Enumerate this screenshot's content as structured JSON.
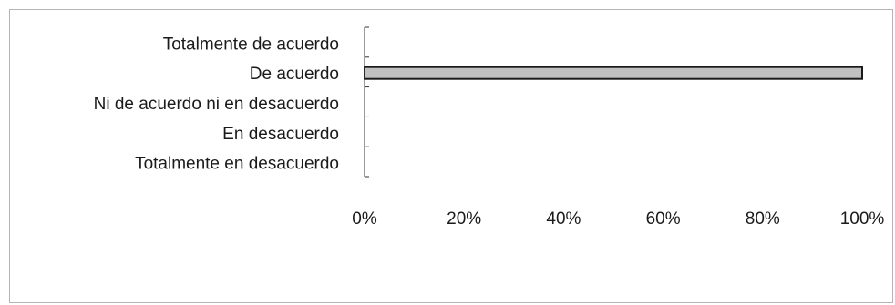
{
  "chart_data": {
    "type": "bar",
    "orientation": "horizontal",
    "categories": [
      "Totalmente de acuerdo",
      "De acuerdo",
      "Ni de acuerdo ni en desacuerdo",
      "En desacuerdo",
      "Totalmente en desacuerdo"
    ],
    "values": [
      0,
      100,
      0,
      0,
      0
    ],
    "value_unit": "percent",
    "xlim": [
      0,
      100
    ],
    "x_ticks": [
      "0%",
      "20%",
      "40%",
      "60%",
      "80%",
      "100%"
    ],
    "grid": false,
    "legend": "none",
    "bar_color": "#c0c0c0",
    "bar_edge_color": "#1a1a1a",
    "axis_color": "#333333",
    "title": "",
    "xlabel": "",
    "ylabel": ""
  }
}
